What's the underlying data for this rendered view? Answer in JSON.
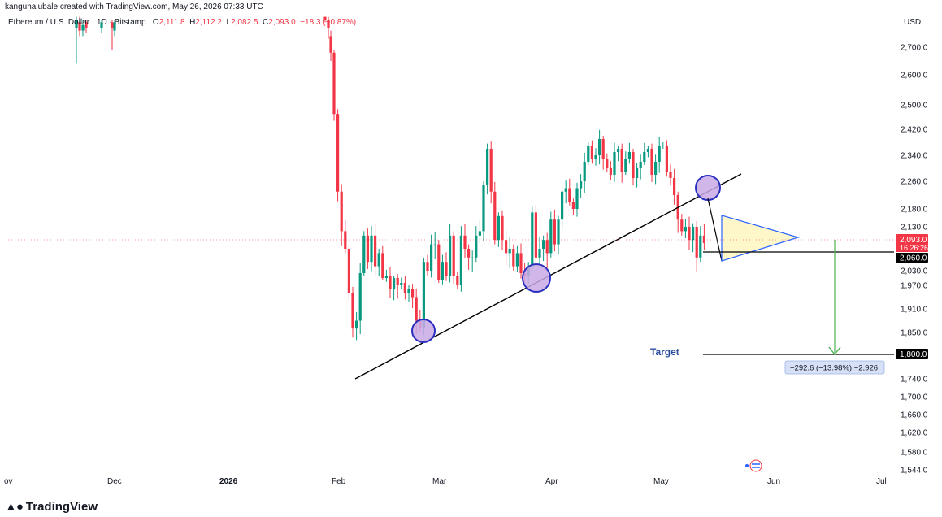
{
  "header": {
    "credit": "kanguhalubale created with TradingView.com, May 26, 2026 07:33 UTC"
  },
  "symbol": {
    "name": "Ethereum / U.S. Dollar",
    "interval": "1D",
    "exchange": "Bitstamp",
    "open_label": "O",
    "open": "2,111.8",
    "high_label": "H",
    "high": "2,112.2",
    "low_label": "L",
    "low": "2,082.5",
    "close_label": "C",
    "close": "2,093.0",
    "change": "−18.3 (−0.87%)"
  },
  "currency": "USD",
  "brand": "TradingView",
  "colors": {
    "up": "#089981",
    "down": "#f23645",
    "trend": "#000000",
    "target_arrow": "#4caf50",
    "circle_fill": "#c9a9e6",
    "circle_stroke": "#2a2fbf",
    "triangle_fill": "#fdf6c4",
    "triangle_stroke": "#2962ff",
    "target_text": "#2a4d9b"
  },
  "chart_data": {
    "type": "candlestick",
    "instrument": "Ethereum / U.S. Dollar",
    "timeframe": "1D",
    "price_axis": {
      "ticks": [
        "2,700.0",
        "2,600.0",
        "2,500.0",
        "2,420.0",
        "2,340.0",
        "2,260.0",
        "2,180.0",
        "2,130.0",
        "2,030.0",
        "1,970.0",
        "1,910.0",
        "1,850.0",
        "1,740.0",
        "1,700.0",
        "1,660.0",
        "1,620.0",
        "1,580.0",
        "1,544.0"
      ],
      "tick_values": [
        2700,
        2600,
        2500,
        2420,
        2340,
        2260,
        2180,
        2130,
        2030,
        1970,
        1910,
        1850,
        1740,
        1700,
        1660,
        1620,
        1580,
        1544
      ]
    },
    "time_axis": [
      "ov",
      "Dec",
      "2026",
      "Feb",
      "Mar",
      "Apr",
      "May",
      "Jun",
      "Jul"
    ],
    "last_price": {
      "value": "2,093.0",
      "countdown": "16:26:26"
    },
    "level_2060": {
      "value": 2060,
      "label": "2,060.0"
    },
    "target": {
      "value": 1800,
      "label": "1,800.0",
      "text": "Target"
    },
    "measure": {
      "text": "−292.6 (−13.98%) −2,926"
    },
    "candles_closes": [
      2470,
      2230,
      2120,
      2080,
      1950,
      1860,
      1880,
      2020,
      2110,
      2050,
      2110,
      2040,
      2070,
      2000,
      2010,
      1960,
      2000,
      1970,
      1980,
      1950,
      1960,
      1940,
      1880,
      1860,
      2050,
      2030,
      2090,
      2090,
      1990,
      2050,
      2010,
      2110,
      2010,
      1970,
      2110,
      2080,
      2060,
      2060,
      2110,
      2120,
      2250,
      2360,
      2230,
      2100,
      2160,
      2100,
      2070,
      2080,
      2040,
      2070,
      2020,
      2010,
      2040,
      2170,
      2060,
      2080,
      2100,
      2070,
      2150,
      2090,
      2150,
      2230,
      2240,
      2200,
      2180,
      2240,
      2260,
      2320,
      2370,
      2330,
      2340,
      2390,
      2330,
      2300,
      2280,
      2350,
      2360,
      2290,
      2330,
      2350,
      2270,
      2300,
      2320,
      2350,
      2360,
      2280,
      2320,
      2370,
      2370,
      2290,
      2270,
      2220,
      2150,
      2120,
      2130,
      2100,
      2130,
      2060,
      2110,
      2093
    ]
  }
}
